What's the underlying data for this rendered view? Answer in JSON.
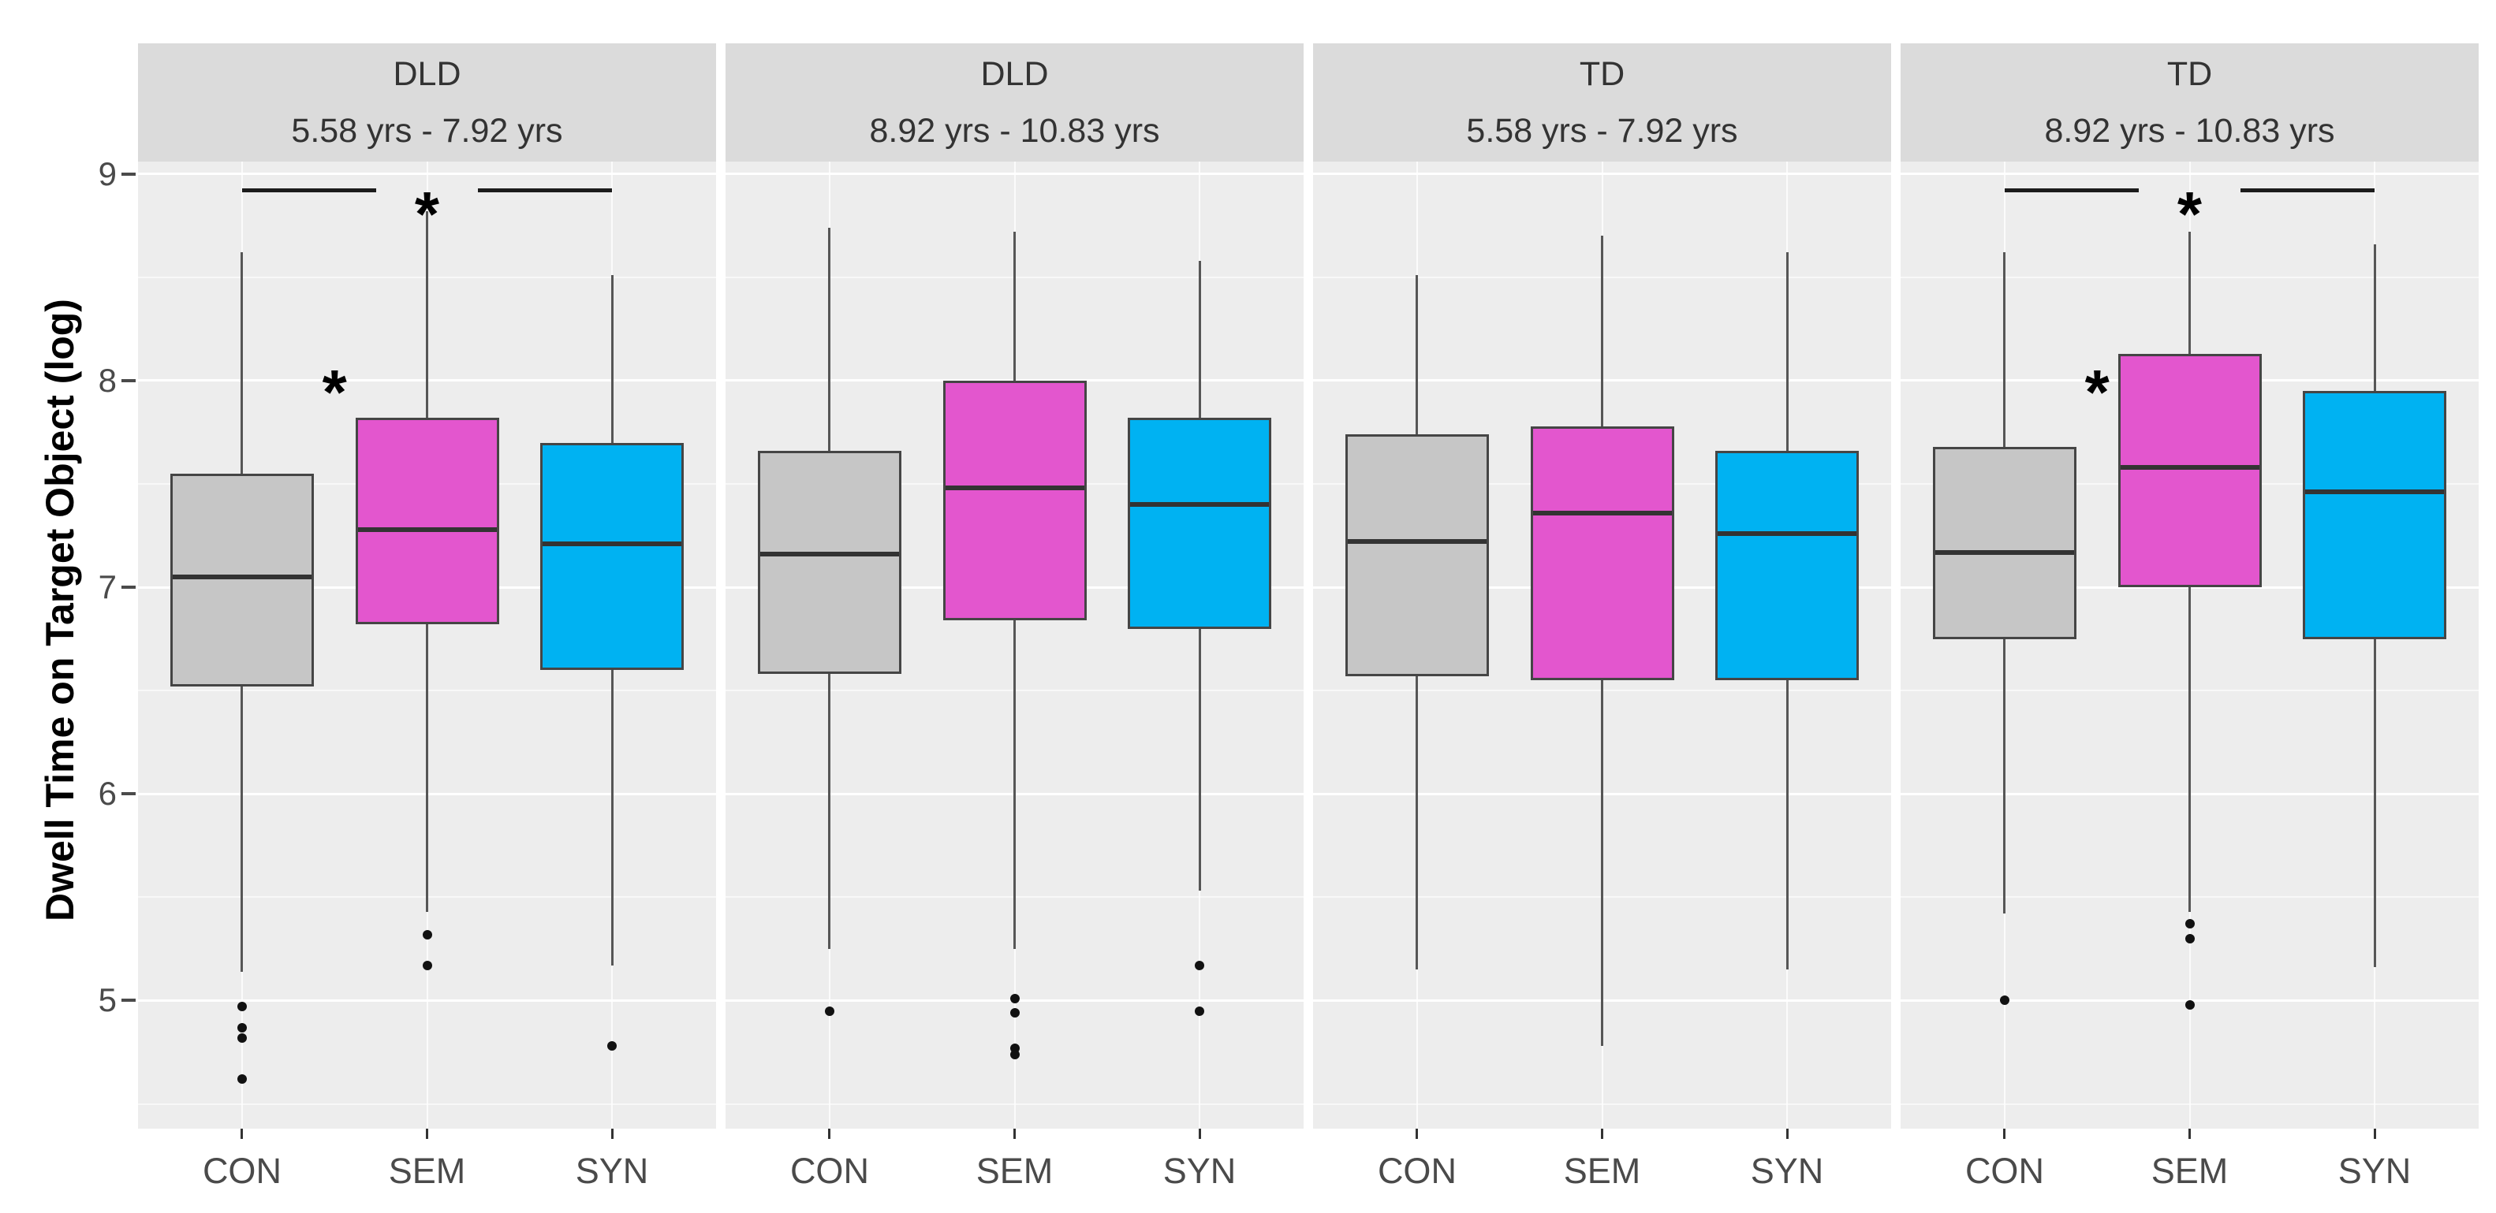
{
  "chart_data": {
    "type": "boxplot",
    "title": "",
    "ylabel": "Dwell Time on Target Object (log)",
    "ylim": [
      4.38,
      9.06
    ],
    "yticks": [
      9,
      8,
      7,
      6,
      5
    ],
    "grid": {
      "major": [
        5,
        6,
        7,
        8,
        9
      ],
      "minor": [
        4.5,
        5.5,
        6.5,
        7.5,
        8.5
      ]
    },
    "legend": "none",
    "categories": [
      "CON",
      "SEM",
      "SYN"
    ],
    "colors": {
      "CON": "#C6C6C6",
      "SEM": "#E356CE",
      "SYN": "#00B2F2"
    },
    "facets": [
      {
        "group": "DLD",
        "age_range": "5.58 yrs - 7.92 yrs",
        "boxes": [
          {
            "category": "CON",
            "whisker_low": 5.14,
            "q1": 6.52,
            "median": 7.05,
            "q3": 7.55,
            "whisker_high": 8.62,
            "outliers": [
              4.97,
              4.87,
              4.82,
              4.62
            ]
          },
          {
            "category": "SEM",
            "whisker_low": 5.43,
            "q1": 6.82,
            "median": 7.28,
            "q3": 7.82,
            "whisker_high": 8.82,
            "outliers": [
              5.32,
              5.17
            ]
          },
          {
            "category": "SYN",
            "whisker_low": 5.17,
            "q1": 6.6,
            "median": 7.21,
            "q3": 7.7,
            "whisker_high": 8.51,
            "outliers": [
              4.78
            ]
          }
        ],
        "significance": {
          "bracket": {
            "from": "CON",
            "to": "SYN",
            "y": 8.92,
            "label": "*"
          },
          "star": {
            "between": [
              "CON",
              "SEM"
            ],
            "y": 8.0,
            "label": "*"
          }
        }
      },
      {
        "group": "DLD",
        "age_range": "8.92 yrs - 10.83 yrs",
        "boxes": [
          {
            "category": "CON",
            "whisker_low": 5.25,
            "q1": 6.58,
            "median": 7.16,
            "q3": 7.66,
            "whisker_high": 8.74,
            "outliers": [
              4.95
            ]
          },
          {
            "category": "SEM",
            "whisker_low": 5.25,
            "q1": 6.84,
            "median": 7.48,
            "q3": 8.0,
            "whisker_high": 8.72,
            "outliers": [
              5.01,
              4.94,
              4.77,
              4.74
            ]
          },
          {
            "category": "SYN",
            "whisker_low": 5.53,
            "q1": 6.8,
            "median": 7.4,
            "q3": 7.82,
            "whisker_high": 8.58,
            "outliers": [
              5.17,
              4.95
            ]
          }
        ],
        "significance": null
      },
      {
        "group": "TD",
        "age_range": "5.58 yrs - 7.92 yrs",
        "boxes": [
          {
            "category": "CON",
            "whisker_low": 5.15,
            "q1": 6.57,
            "median": 7.22,
            "q3": 7.74,
            "whisker_high": 8.51,
            "outliers": []
          },
          {
            "category": "SEM",
            "whisker_low": 4.78,
            "q1": 6.55,
            "median": 7.36,
            "q3": 7.78,
            "whisker_high": 8.7,
            "outliers": []
          },
          {
            "category": "SYN",
            "whisker_low": 5.15,
            "q1": 6.55,
            "median": 7.26,
            "q3": 7.66,
            "whisker_high": 8.62,
            "outliers": []
          }
        ],
        "significance": null
      },
      {
        "group": "TD",
        "age_range": "8.92 yrs - 10.83 yrs",
        "boxes": [
          {
            "category": "CON",
            "whisker_low": 5.42,
            "q1": 6.75,
            "median": 7.17,
            "q3": 7.68,
            "whisker_high": 8.62,
            "outliers": [
              5.0
            ]
          },
          {
            "category": "SEM",
            "whisker_low": 5.43,
            "q1": 7.0,
            "median": 7.58,
            "q3": 8.13,
            "whisker_high": 8.72,
            "outliers": [
              5.37,
              5.3,
              4.98
            ]
          },
          {
            "category": "SYN",
            "whisker_low": 5.16,
            "q1": 6.75,
            "median": 7.46,
            "q3": 7.95,
            "whisker_high": 8.66,
            "outliers": []
          }
        ],
        "significance": {
          "bracket": {
            "from": "CON",
            "to": "SYN",
            "y": 8.92,
            "label": "*"
          },
          "star": {
            "between": [
              "CON",
              "SEM"
            ],
            "y": 8.0,
            "label": "*"
          }
        }
      }
    ]
  }
}
